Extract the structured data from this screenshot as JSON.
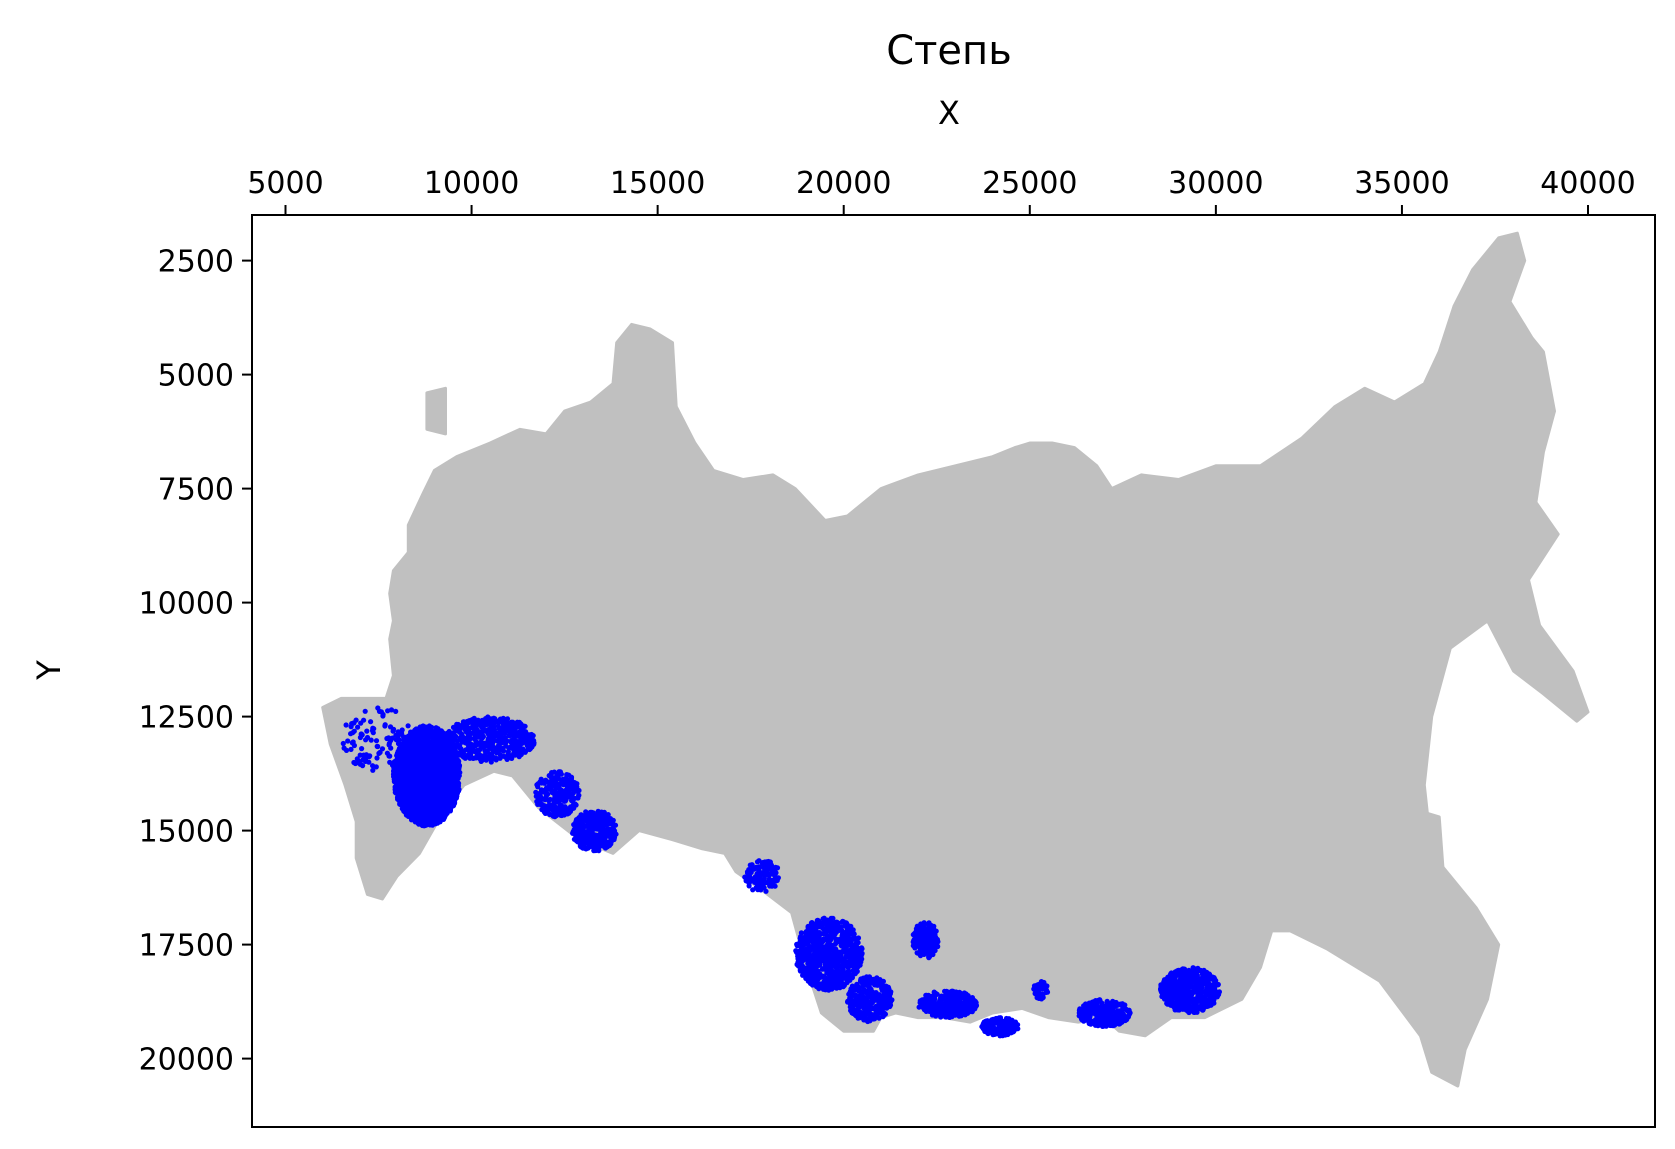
{
  "chart_data": {
    "type": "scatter",
    "title": "Степь",
    "xlabel": "X",
    "ylabel": "Y",
    "x_axis_position": "top",
    "y_axis_inverted": true,
    "xlim": [
      4100,
      41800
    ],
    "ylim": [
      21500,
      1500
    ],
    "xticks": [
      "5000",
      "10000",
      "15000",
      "20000",
      "25000",
      "30000",
      "35000",
      "40000"
    ],
    "xtick_values": [
      5000,
      10000,
      15000,
      20000,
      25000,
      30000,
      35000,
      40000
    ],
    "yticks": [
      "2500",
      "5000",
      "7500",
      "10000",
      "12500",
      "15000",
      "17500",
      "20000"
    ],
    "ytick_values": [
      2500,
      5000,
      7500,
      10000,
      12500,
      15000,
      17500,
      20000
    ],
    "grid": false,
    "series": [
      {
        "color": "#c0c0c0",
        "polygons": [
          [
            [
              7700,
              12100
            ],
            [
              7900,
              11600
            ],
            [
              7800,
              10800
            ],
            [
              7900,
              10400
            ],
            [
              7800,
              9800
            ],
            [
              7900,
              9300
            ],
            [
              8300,
              8900
            ],
            [
              8300,
              8300
            ],
            [
              8700,
              7600
            ],
            [
              9000,
              7100
            ],
            [
              9600,
              6800
            ],
            [
              10500,
              6500
            ],
            [
              11300,
              6200
            ],
            [
              12000,
              6300
            ],
            [
              12500,
              5800
            ],
            [
              13200,
              5600
            ],
            [
              13800,
              5200
            ],
            [
              13900,
              4300
            ],
            [
              14300,
              3900
            ],
            [
              14800,
              4000
            ],
            [
              15400,
              4300
            ],
            [
              15500,
              5700
            ],
            [
              16000,
              6500
            ],
            [
              16500,
              7100
            ],
            [
              17300,
              7300
            ],
            [
              18100,
              7200
            ],
            [
              18700,
              7500
            ],
            [
              19500,
              8200
            ],
            [
              20100,
              8100
            ],
            [
              21000,
              7500
            ],
            [
              22000,
              7200
            ],
            [
              23000,
              7000
            ],
            [
              24000,
              6800
            ],
            [
              24600,
              6600
            ],
            [
              25000,
              6500
            ],
            [
              25600,
              6500
            ],
            [
              26200,
              6600
            ],
            [
              26800,
              7000
            ],
            [
              27200,
              7500
            ],
            [
              28000,
              7200
            ],
            [
              29000,
              7300
            ],
            [
              30000,
              7000
            ],
            [
              31200,
              7000
            ],
            [
              32300,
              6400
            ],
            [
              33200,
              5700
            ],
            [
              34000,
              5300
            ],
            [
              34800,
              5600
            ],
            [
              35600,
              5200
            ],
            [
              36000,
              4500
            ],
            [
              36400,
              3500
            ],
            [
              36900,
              2700
            ],
            [
              37600,
              2000
            ],
            [
              38100,
              1900
            ],
            [
              38300,
              2500
            ],
            [
              37900,
              3400
            ],
            [
              38500,
              4200
            ],
            [
              38800,
              4500
            ],
            [
              39100,
              5800
            ],
            [
              38800,
              6700
            ],
            [
              38600,
              7800
            ],
            [
              39200,
              8500
            ],
            [
              38400,
              9500
            ],
            [
              38700,
              10500
            ],
            [
              39600,
              11500
            ],
            [
              40000,
              12400
            ],
            [
              39700,
              12600
            ],
            [
              38800,
              12000
            ],
            [
              38000,
              11500
            ],
            [
              37300,
              10400
            ],
            [
              36300,
              11000
            ],
            [
              35800,
              12500
            ],
            [
              35600,
              14000
            ],
            [
              35800,
              15500
            ],
            [
              37000,
              16700
            ],
            [
              37600,
              17500
            ],
            [
              37300,
              18700
            ],
            [
              36700,
              19800
            ],
            [
              36500,
              20600
            ],
            [
              35800,
              20300
            ],
            [
              35500,
              19500
            ],
            [
              34400,
              18300
            ],
            [
              33000,
              17600
            ],
            [
              32000,
              17200
            ],
            [
              31500,
              17200
            ],
            [
              31200,
              18000
            ],
            [
              30700,
              18700
            ],
            [
              29700,
              19100
            ],
            [
              28800,
              19100
            ],
            [
              28100,
              19500
            ],
            [
              27400,
              19400
            ],
            [
              27000,
              19100
            ],
            [
              26300,
              19200
            ],
            [
              25500,
              19100
            ],
            [
              24800,
              18900
            ],
            [
              24000,
              19000
            ],
            [
              23400,
              19200
            ],
            [
              22700,
              19100
            ],
            [
              22000,
              19100
            ],
            [
              21400,
              19000
            ],
            [
              21000,
              19100
            ],
            [
              20800,
              19400
            ],
            [
              20000,
              19400
            ],
            [
              19400,
              19000
            ],
            [
              19000,
              18000
            ],
            [
              18600,
              16800
            ],
            [
              17800,
              16300
            ],
            [
              17100,
              15900
            ],
            [
              16800,
              15500
            ],
            [
              16200,
              15400
            ],
            [
              15400,
              15200
            ],
            [
              14500,
              15000
            ],
            [
              13800,
              15500
            ],
            [
              12900,
              15200
            ],
            [
              11800,
              14500
            ],
            [
              11100,
              13800
            ],
            [
              10600,
              13700
            ],
            [
              9800,
              14000
            ],
            [
              9300,
              14500
            ],
            [
              8600,
              15500
            ],
            [
              8000,
              16000
            ],
            [
              7600,
              16500
            ],
            [
              7200,
              16400
            ],
            [
              6900,
              15600
            ],
            [
              6900,
              14800
            ],
            [
              6600,
              14000
            ],
            [
              6200,
              13100
            ],
            [
              6000,
              12300
            ],
            [
              6500,
              12100
            ]
          ],
          [
            [
              8800,
              5400
            ],
            [
              9300,
              5300
            ],
            [
              9300,
              6300
            ],
            [
              8800,
              6200
            ]
          ],
          [
            [
              35600,
              14600
            ],
            [
              36000,
              14700
            ],
            [
              36100,
              15800
            ],
            [
              35900,
              17000
            ],
            [
              35600,
              17300
            ],
            [
              35500,
              16000
            ]
          ]
        ]
      },
      {
        "color": "#0000ff",
        "clusters": [
          {
            "cx": 8800,
            "cy": 13800,
            "rx": 900,
            "ry": 1100,
            "n": 2200
          },
          {
            "cx": 10500,
            "cy": 13000,
            "rx": 1200,
            "ry": 500,
            "n": 500
          },
          {
            "cx": 7500,
            "cy": 13000,
            "rx": 1000,
            "ry": 700,
            "n": 120
          },
          {
            "cx": 12300,
            "cy": 14200,
            "rx": 600,
            "ry": 500,
            "n": 250
          },
          {
            "cx": 13300,
            "cy": 15000,
            "rx": 600,
            "ry": 450,
            "n": 350
          },
          {
            "cx": 17800,
            "cy": 16000,
            "rx": 500,
            "ry": 350,
            "n": 120
          },
          {
            "cx": 19600,
            "cy": 17700,
            "rx": 900,
            "ry": 800,
            "n": 700
          },
          {
            "cx": 20700,
            "cy": 18700,
            "rx": 600,
            "ry": 500,
            "n": 300
          },
          {
            "cx": 22200,
            "cy": 17400,
            "rx": 350,
            "ry": 400,
            "n": 160
          },
          {
            "cx": 22800,
            "cy": 18800,
            "rx": 800,
            "ry": 300,
            "n": 350
          },
          {
            "cx": 24200,
            "cy": 19300,
            "rx": 500,
            "ry": 200,
            "n": 160
          },
          {
            "cx": 25300,
            "cy": 18500,
            "rx": 200,
            "ry": 200,
            "n": 50
          },
          {
            "cx": 27000,
            "cy": 19000,
            "rx": 700,
            "ry": 300,
            "n": 260
          },
          {
            "cx": 29300,
            "cy": 18500,
            "rx": 800,
            "ry": 500,
            "n": 550
          }
        ]
      }
    ]
  }
}
